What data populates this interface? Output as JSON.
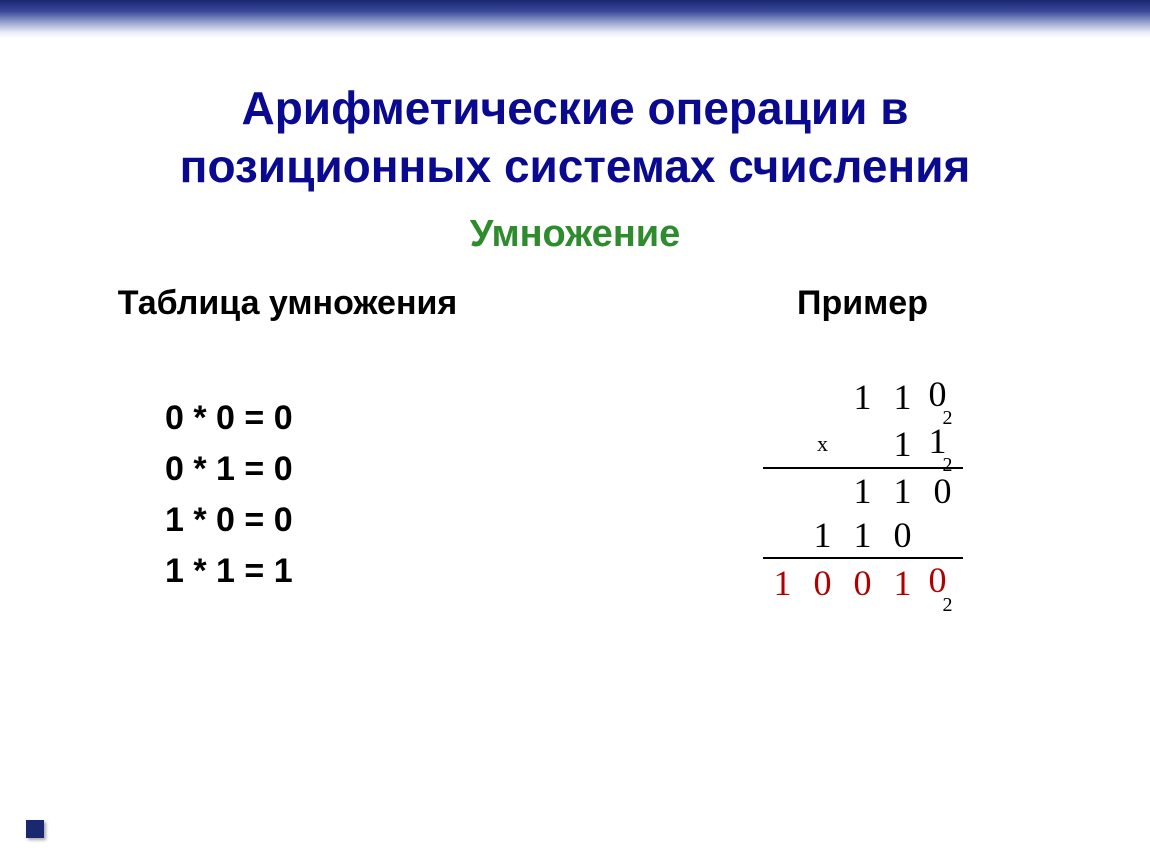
{
  "title_line1": "Арифметические операции в",
  "title_line2": "позиционных системах счисления",
  "subtitle": "Умножение",
  "left_header": "Таблица умножения",
  "right_header": "Пример",
  "mul_table": [
    "0 * 0 = 0",
    "0 * 1 = 0",
    "1 * 0 = 0",
    "1 * 1 = 1"
  ],
  "example": {
    "multiplicand": {
      "digits": [
        "1",
        "1",
        "0"
      ],
      "base": "2"
    },
    "multiplier": {
      "digits": [
        "1",
        "1"
      ],
      "base": "2"
    },
    "partial1": [
      "1",
      "1",
      "0"
    ],
    "partial2": [
      "1",
      "1",
      "0"
    ],
    "result": {
      "digits": [
        "1",
        "0",
        "0",
        "1",
        "0"
      ],
      "base": "2"
    },
    "mult_sign": "х"
  },
  "colors": {
    "title": "#0a0a90",
    "subtitle": "#2e8b2e",
    "text": "#000000",
    "result": "#b00000",
    "border_gradient_top": "#1a2870",
    "background": "#ffffff"
  }
}
